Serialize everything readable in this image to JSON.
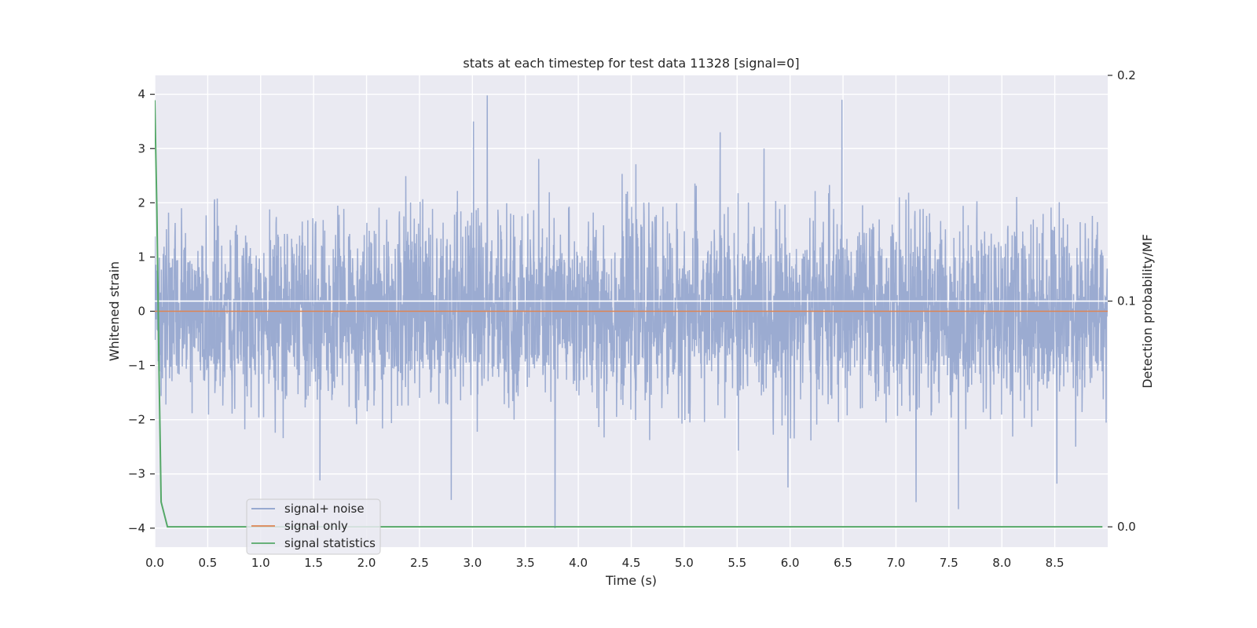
{
  "chart_data": {
    "type": "line",
    "title": "stats at each timestep for test data 11328 [signal=0]",
    "xlabel": "Time (s)",
    "ylabel": "Whitened strain",
    "ylabel_right": "Detection probability/MF",
    "xlim": [
      0.0,
      9.0
    ],
    "ylim": [
      -4.35,
      4.35
    ],
    "ylim_right": [
      -0.009,
      0.2
    ],
    "x_ticks": [
      0.0,
      0.5,
      1.0,
      1.5,
      2.0,
      2.5,
      3.0,
      3.5,
      4.0,
      4.5,
      5.0,
      5.5,
      6.0,
      6.5,
      7.0,
      7.5,
      8.0,
      8.5
    ],
    "y_ticks": [
      4,
      3,
      2,
      1,
      0,
      -1,
      -2,
      -3,
      -4
    ],
    "y_tick_labels": [
      "4",
      "3",
      "2",
      "1",
      "0",
      "−1",
      "−2",
      "−3",
      "−4"
    ],
    "y_ticks_right": [
      0.2,
      0.1,
      0.0
    ],
    "grid": true,
    "background": "#eaeaf2",
    "legend": {
      "placement": "lower-left",
      "entries": [
        "signal+ noise",
        "signal only",
        "signal statistics"
      ]
    },
    "series": [
      {
        "name": "signal+ noise",
        "color": "#8da0cb",
        "axis": "left",
        "description_values": {
          "x_start": 0.0,
          "x_end": 9.0,
          "typical_std": 0.85,
          "peaks": [
            {
              "x": 3.14,
              "y": 3.98
            },
            {
              "x": 6.49,
              "y": 3.9
            },
            {
              "x": 3.01,
              "y": 3.5
            },
            {
              "x": 5.34,
              "y": 3.3
            },
            {
              "x": 3.78,
              "y": -4.0
            },
            {
              "x": 7.59,
              "y": -3.65
            },
            {
              "x": 2.8,
              "y": -3.48
            },
            {
              "x": 7.19,
              "y": -3.52
            },
            {
              "x": 5.98,
              "y": -3.25
            },
            {
              "x": 8.52,
              "y": -3.18
            },
            {
              "x": 1.56,
              "y": -3.12
            }
          ]
        }
      },
      {
        "name": "signal only",
        "color": "#dd8452",
        "axis": "left",
        "x": [
          0.0,
          9.0
        ],
        "y": [
          0.0,
          0.0
        ]
      },
      {
        "name": "signal statistics",
        "color": "#55a868",
        "axis": "right",
        "x": [
          0.0,
          0.02,
          0.04,
          0.06,
          0.12,
          0.5,
          1.0,
          2.0,
          3.0,
          4.0,
          5.0,
          6.0,
          7.0,
          8.0,
          8.95
        ],
        "y": [
          0.189,
          0.14,
          0.07,
          0.011,
          0.0,
          0.0,
          0.0,
          0.0,
          0.0,
          0.0,
          0.0,
          0.0,
          0.0,
          0.0,
          0.0
        ]
      }
    ],
    "horizontal_line_right": 0.1
  }
}
